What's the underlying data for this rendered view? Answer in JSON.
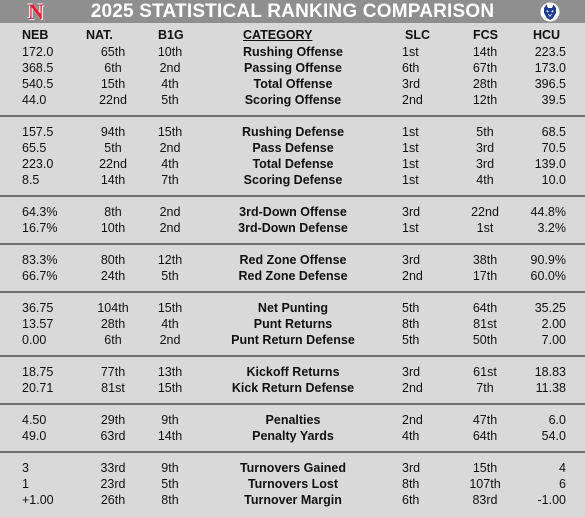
{
  "header": {
    "title": "2025 STATISTICAL RANKING COMPARISON",
    "left_logo": "N",
    "left_logo_icon": "nebraska-n-logo-icon",
    "right_logo_icon": "husky-head-logo-icon",
    "colors": {
      "header_bg": "#8f8f8f",
      "nebraska_red": "#e41c38",
      "hcu_blue": "#1f3b8c",
      "background": "#d9d9d9"
    }
  },
  "columns": {
    "neb": "NEB",
    "nat": "NAT.",
    "big": "B1G",
    "category": "CATEGORY",
    "slc": "SLC",
    "fcs": "FCS",
    "hcu": "HCU"
  },
  "rows": [
    {
      "neb": "172.0",
      "nat": "65th",
      "big": "10th",
      "category": "Rushing Offense",
      "slc": "1st",
      "fcs": "14th",
      "hcu": "223.5"
    },
    {
      "neb": "368.5",
      "nat": "6th",
      "big": "2nd",
      "category": "Passing Offense",
      "slc": "6th",
      "fcs": "67th",
      "hcu": "173.0"
    },
    {
      "neb": "540.5",
      "nat": "15th",
      "big": "4th",
      "category": "Total Offense",
      "slc": "3rd",
      "fcs": "28th",
      "hcu": "396.5"
    },
    {
      "neb": "44.0",
      "nat": "22nd",
      "big": "5th",
      "category": "Scoring Offense",
      "slc": "2nd",
      "fcs": "12th",
      "hcu": "39.5"
    },
    {
      "neb": "157.5",
      "nat": "94th",
      "big": "15th",
      "category": "Rushing Defense",
      "slc": "1st",
      "fcs": "5th",
      "hcu": "68.5"
    },
    {
      "neb": "65.5",
      "nat": "5th",
      "big": "2nd",
      "category": "Pass Defense",
      "slc": "1st",
      "fcs": "3rd",
      "hcu": "70.5"
    },
    {
      "neb": "223.0",
      "nat": "22nd",
      "big": "4th",
      "category": "Total Defense",
      "slc": "1st",
      "fcs": "3rd",
      "hcu": "139.0"
    },
    {
      "neb": "8.5",
      "nat": "14th",
      "big": "7th",
      "category": "Scoring Defense",
      "slc": "1st",
      "fcs": "4th",
      "hcu": "10.0"
    },
    {
      "neb": "64.3%",
      "nat": "8th",
      "big": "2nd",
      "category": "3rd-Down Offense",
      "slc": "3rd",
      "fcs": "22nd",
      "hcu": "44.8%"
    },
    {
      "neb": "16.7%",
      "nat": "10th",
      "big": "2nd",
      "category": "3rd-Down Defense",
      "slc": "1st",
      "fcs": "1st",
      "hcu": "3.2%"
    },
    {
      "neb": "83.3%",
      "nat": "80th",
      "big": "12th",
      "category": "Red Zone Offense",
      "slc": "3rd",
      "fcs": "38th",
      "hcu": "90.9%"
    },
    {
      "neb": "66.7%",
      "nat": "24th",
      "big": "5th",
      "category": "Red Zone Defense",
      "slc": "2nd",
      "fcs": "17th",
      "hcu": "60.0%"
    },
    {
      "neb": "36.75",
      "nat": "104th",
      "big": "15th",
      "category": "Net Punting",
      "slc": "5th",
      "fcs": "64th",
      "hcu": "35.25"
    },
    {
      "neb": "13.57",
      "nat": "28th",
      "big": "4th",
      "category": "Punt Returns",
      "slc": "8th",
      "fcs": "81st",
      "hcu": "2.00"
    },
    {
      "neb": "0.00",
      "nat": "6th",
      "big": "2nd",
      "category": "Punt Return Defense",
      "slc": "5th",
      "fcs": "50th",
      "hcu": "7.00"
    },
    {
      "neb": "18.75",
      "nat": "77th",
      "big": "13th",
      "category": "Kickoff Returns",
      "slc": "3rd",
      "fcs": "61st",
      "hcu": "18.83"
    },
    {
      "neb": "20.71",
      "nat": "81st",
      "big": "15th",
      "category": "Kick Return Defense",
      "slc": "2nd",
      "fcs": "7th",
      "hcu": "11.38"
    },
    {
      "neb": "4.50",
      "nat": "29th",
      "big": "9th",
      "category": "Penalties",
      "slc": "2nd",
      "fcs": "47th",
      "hcu": "6.0"
    },
    {
      "neb": "49.0",
      "nat": "63rd",
      "big": "14th",
      "category": "Penalty Yards",
      "slc": "4th",
      "fcs": "64th",
      "hcu": "54.0"
    },
    {
      "neb": "3",
      "nat": "33rd",
      "big": "9th",
      "category": "Turnovers Gained",
      "slc": "3rd",
      "fcs": "15th",
      "hcu": "4"
    },
    {
      "neb": "1",
      "nat": "23rd",
      "big": "5th",
      "category": "Turnovers Lost",
      "slc": "8th",
      "fcs": "107th",
      "hcu": "6"
    },
    {
      "neb": "+1.00",
      "nat": "26th",
      "big": "8th",
      "category": "Turnover Margin",
      "slc": "6th",
      "fcs": "83rd",
      "hcu": "-1.00"
    }
  ]
}
